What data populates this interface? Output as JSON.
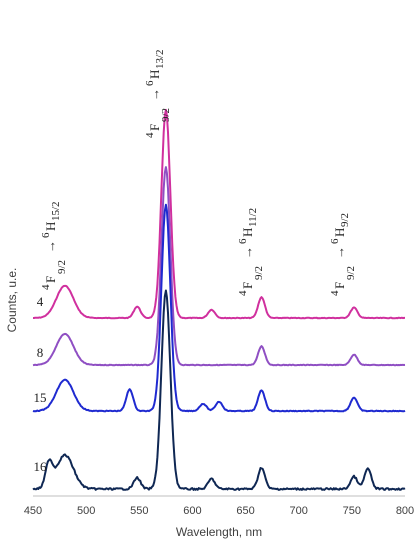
{
  "chart_data": {
    "type": "line",
    "title": "",
    "xlabel": "Wavelength, nm",
    "ylabel": "Counts, u.e.",
    "xlim": [
      450,
      800
    ],
    "xticks": [
      "450",
      "500",
      "550",
      "600",
      "650",
      "700",
      "750",
      "800"
    ],
    "grid": false,
    "series": [
      {
        "name": "4",
        "color": "#d0309e",
        "level": 1.0,
        "peaks": [
          [
            480,
            3.1
          ],
          [
            548,
            1.1
          ],
          [
            575,
            20.0
          ],
          [
            618,
            0.8
          ],
          [
            665,
            2.0
          ],
          [
            752,
            1.0
          ]
        ]
      },
      {
        "name": "8",
        "color": "#8f4fc3",
        "level": 1.0,
        "peaks": [
          [
            480,
            3.0
          ],
          [
            575,
            19.0
          ],
          [
            665,
            1.8
          ],
          [
            752,
            1.0
          ]
        ]
      },
      {
        "name": "15",
        "color": "#1f2ad0",
        "level": 1.0,
        "peaks": [
          [
            480,
            3.0
          ],
          [
            541,
            2.1
          ],
          [
            575,
            19.8
          ],
          [
            610,
            0.7
          ],
          [
            625,
            0.9
          ],
          [
            665,
            2.0
          ],
          [
            752,
            1.3
          ]
        ]
      },
      {
        "name": "16",
        "color": "#0f2753",
        "level": 1.0,
        "peaks": [
          [
            465,
            2.1
          ],
          [
            480,
            3.0
          ],
          [
            548,
            1.0
          ],
          [
            575,
            17.5
          ],
          [
            618,
            0.9
          ],
          [
            665,
            1.9
          ],
          [
            752,
            1.1
          ],
          [
            765,
            1.8
          ]
        ]
      }
    ],
    "annotations": [
      {
        "pre": "4",
        "main": "F",
        "sub": "9/2",
        "arrow": "→",
        "sup": "6",
        "main2": "H",
        "sub2": "15/2"
      },
      {
        "pre": "4",
        "main": "F",
        "sub": "9/2",
        "arrow": "→",
        "sup": "6",
        "main2": "H",
        "sub2": "13/2"
      },
      {
        "pre": "4",
        "main": "F",
        "sub": "9/2",
        "arrow": "→",
        "sup": "6",
        "main2": "H",
        "sub2": "11/2"
      },
      {
        "pre": "4",
        "main": "F",
        "sub": "9/2",
        "arrow": "→",
        "sup": "6",
        "main2": "H",
        "sub2": "9/2"
      }
    ]
  }
}
